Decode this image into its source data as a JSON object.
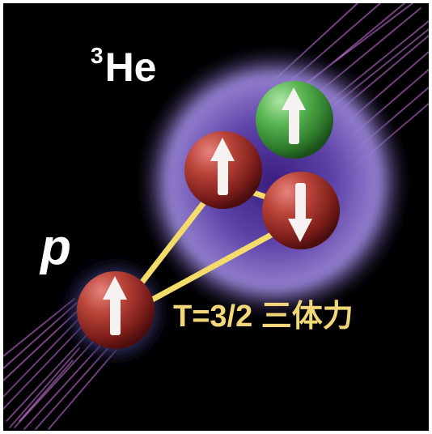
{
  "figure": {
    "nucleus_label": {
      "superscript": "3",
      "element": "He"
    },
    "proton_label": "p",
    "force_label": "T=3/2 三体力"
  },
  "particles": [
    {
      "name": "proton",
      "color": "#b23a32",
      "spin": "up"
    },
    {
      "name": "helium3-proton-1",
      "color": "#b23a32",
      "spin": "up"
    },
    {
      "name": "helium3-proton-2",
      "color": "#b23a32",
      "spin": "down"
    },
    {
      "name": "helium3-neutron",
      "color": "#4caa44",
      "spin": "up"
    }
  ],
  "colors": {
    "background": "#000000",
    "frame": "#ffffff",
    "beam": "#d37be6",
    "force_line": "#f3dc6a",
    "force_label": "#f2d77a",
    "nucleus_glow": "#8f74d8",
    "label": "#ffffff"
  }
}
